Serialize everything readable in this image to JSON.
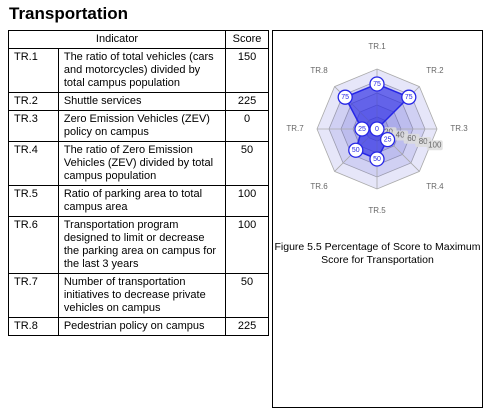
{
  "title": "Transportation",
  "table": {
    "header": [
      "Indicator",
      "Score"
    ],
    "rows": [
      [
        "TR.1",
        "The ratio of total vehicles (cars and motorcycles) divided by total campus population",
        "150"
      ],
      [
        "TR.2",
        "Shuttle services",
        "225"
      ],
      [
        "TR.3",
        "Zero Emission Vehicles (ZEV) policy on campus",
        "0"
      ],
      [
        "TR.4",
        "The ratio of Zero Emission Vehicles (ZEV) divided by total campus population",
        "50"
      ],
      [
        "TR.5",
        "Ratio of parking area to total campus area",
        "100"
      ],
      [
        "TR.6",
        "Transportation program designed to limit or decrease the parking area on campus for the last 3 years",
        "100"
      ],
      [
        "TR.7",
        "Number of transportation initiatives to decrease private vehicles on campus",
        "50"
      ],
      [
        "TR.8",
        "Pedestrian policy on campus",
        "225"
      ]
    ]
  },
  "figure": {
    "caption": "Figure 5.5 Percentage of Score to Maximum Score for Transportation",
    "chart_data": {
      "type": "radar",
      "categories": [
        "TR.1",
        "TR.2",
        "TR.3",
        "TR.4",
        "TR.5",
        "TR.6",
        "TR.7",
        "TR.8"
      ],
      "values": [
        75,
        75,
        0,
        25,
        50,
        50,
        25,
        75
      ],
      "color": "#2626e6",
      "ylim": [
        0,
        100
      ],
      "yticks": [
        20,
        40,
        60,
        80,
        100
      ],
      "grid": true
    }
  }
}
